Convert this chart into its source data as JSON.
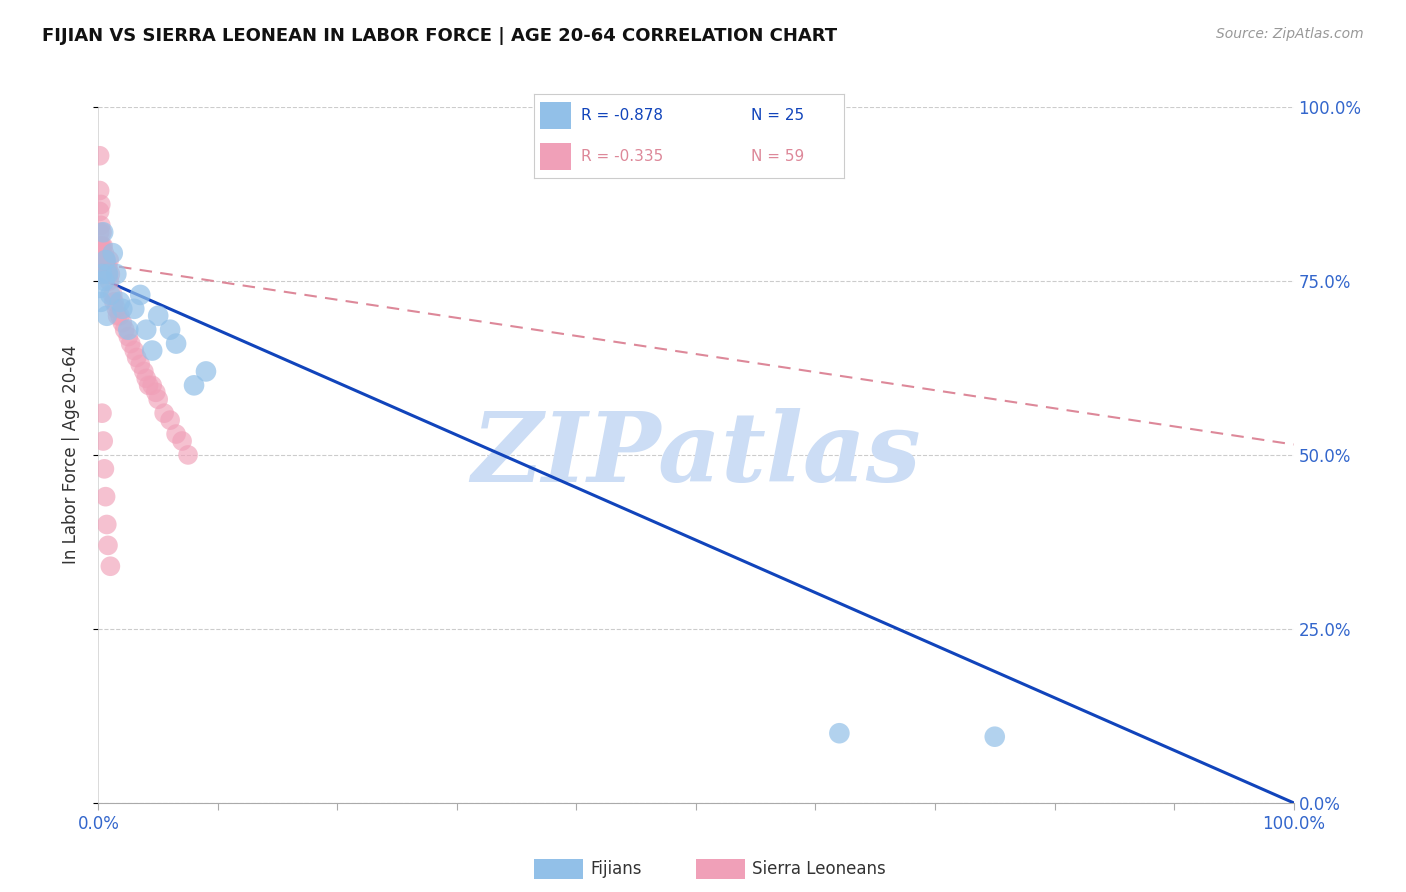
{
  "title": "FIJIAN VS SIERRA LEONEAN IN LABOR FORCE | AGE 20-64 CORRELATION CHART",
  "source_text": "Source: ZipAtlas.com",
  "ylabel": "In Labor Force | Age 20-64",
  "xlim": [
    0.0,
    1.0
  ],
  "ylim": [
    0.0,
    1.0
  ],
  "xticks": [
    0.0,
    0.1,
    0.2,
    0.3,
    0.4,
    0.5,
    0.6,
    0.7,
    0.8,
    0.9,
    1.0
  ],
  "xtick_labels": [
    "0.0%",
    "",
    "",
    "",
    "",
    "",
    "",
    "",
    "",
    "",
    "100.0%"
  ],
  "yticks": [
    0.0,
    0.25,
    0.5,
    0.75,
    1.0
  ],
  "ytick_labels": [
    "0.0%",
    "25.0%",
    "50.0%",
    "75.0%",
    "100.0%"
  ],
  "background_color": "#ffffff",
  "grid_color": "#cccccc",
  "watermark": "ZIPatlas",
  "watermark_color": "#ccddf5",
  "blue_color": "#92c0e8",
  "pink_color": "#f0a0b8",
  "blue_edge_color": "#5599dd",
  "pink_edge_color": "#e07090",
  "blue_line_color": "#1144bb",
  "pink_line_color": "#dd8899",
  "legend_R_blue": "R = -0.878",
  "legend_N_blue": "N = 25",
  "legend_R_pink": "R = -0.335",
  "legend_N_pink": "N = 59",
  "legend_label_blue": "Fijians",
  "legend_label_pink": "Sierra Leoneans",
  "blue_intercept": 0.755,
  "blue_slope": -0.755,
  "pink_intercept": 0.775,
  "pink_slope": -0.26,
  "blue_points_x": [
    0.001,
    0.002,
    0.003,
    0.004,
    0.005,
    0.006,
    0.007,
    0.008,
    0.01,
    0.012,
    0.015,
    0.018,
    0.02,
    0.025,
    0.03,
    0.035,
    0.04,
    0.045,
    0.05,
    0.06,
    0.065,
    0.08,
    0.09,
    0.62,
    0.75
  ],
  "blue_points_y": [
    0.74,
    0.72,
    0.76,
    0.82,
    0.75,
    0.78,
    0.7,
    0.76,
    0.73,
    0.79,
    0.76,
    0.72,
    0.71,
    0.68,
    0.71,
    0.73,
    0.68,
    0.65,
    0.7,
    0.68,
    0.66,
    0.6,
    0.62,
    0.1,
    0.095
  ],
  "pink_points_x": [
    0.001,
    0.001,
    0.001,
    0.001,
    0.001,
    0.002,
    0.002,
    0.002,
    0.002,
    0.003,
    0.003,
    0.003,
    0.003,
    0.003,
    0.004,
    0.004,
    0.004,
    0.005,
    0.005,
    0.005,
    0.006,
    0.006,
    0.007,
    0.007,
    0.008,
    0.008,
    0.009,
    0.009,
    0.01,
    0.012,
    0.013,
    0.015,
    0.016,
    0.018,
    0.02,
    0.022,
    0.025,
    0.027,
    0.03,
    0.032,
    0.035,
    0.038,
    0.04,
    0.042,
    0.045,
    0.048,
    0.05,
    0.055,
    0.06,
    0.065,
    0.07,
    0.075,
    0.003,
    0.004,
    0.005,
    0.006,
    0.007,
    0.008,
    0.01
  ],
  "pink_points_y": [
    0.93,
    0.88,
    0.85,
    0.82,
    0.8,
    0.86,
    0.83,
    0.8,
    0.78,
    0.82,
    0.8,
    0.79,
    0.78,
    0.76,
    0.8,
    0.78,
    0.77,
    0.79,
    0.77,
    0.76,
    0.78,
    0.76,
    0.77,
    0.76,
    0.77,
    0.76,
    0.78,
    0.75,
    0.76,
    0.73,
    0.72,
    0.71,
    0.7,
    0.7,
    0.69,
    0.68,
    0.67,
    0.66,
    0.65,
    0.64,
    0.63,
    0.62,
    0.61,
    0.6,
    0.6,
    0.59,
    0.58,
    0.56,
    0.55,
    0.53,
    0.52,
    0.5,
    0.56,
    0.52,
    0.48,
    0.44,
    0.4,
    0.37,
    0.34
  ]
}
